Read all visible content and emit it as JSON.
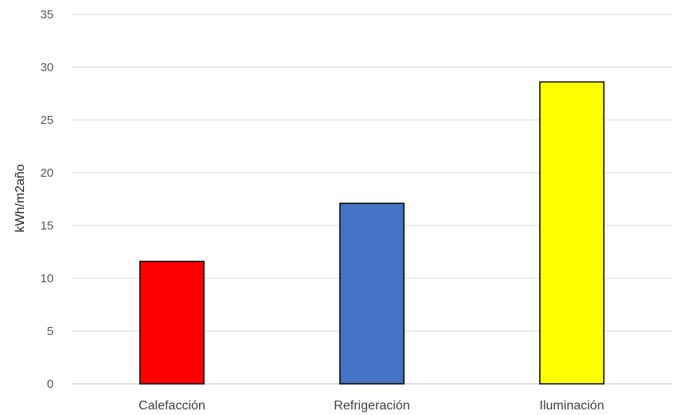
{
  "chart_data": {
    "type": "bar",
    "categories": [
      "Calefacción",
      "Refrigeración",
      "Iluminación"
    ],
    "values": [
      11.6,
      17.1,
      28.6
    ],
    "colors": [
      "#ff0000",
      "#4472c4",
      "#ffff00"
    ],
    "bar_outline_color": "#000000",
    "title": "",
    "xlabel": "",
    "ylabel": "kWh/m2año",
    "ylim": [
      0,
      35
    ],
    "yticks": [
      0,
      5,
      10,
      15,
      20,
      25,
      30,
      35
    ],
    "grid": true,
    "legend": "none"
  }
}
